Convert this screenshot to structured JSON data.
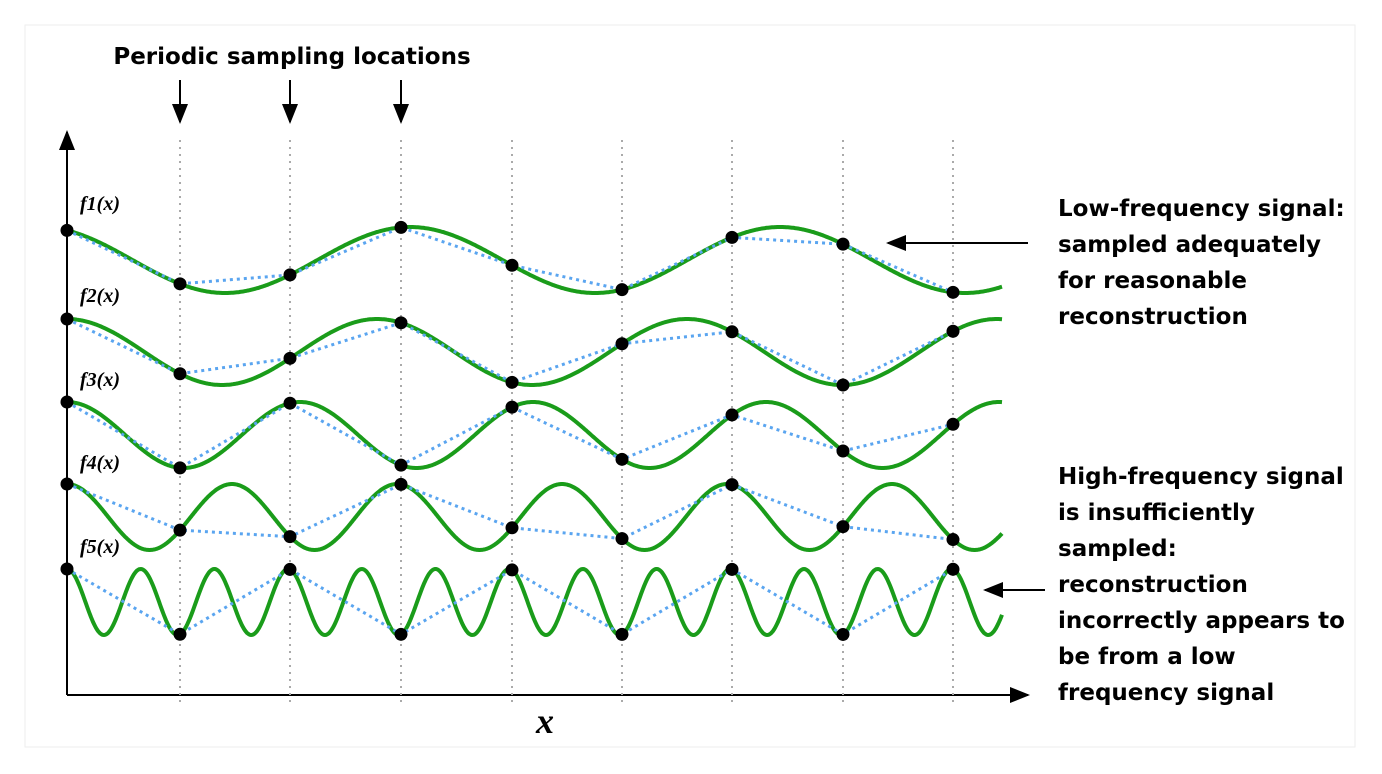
{
  "title": "Periodic sampling locations",
  "signals": [
    {
      "label": "f1(x)"
    },
    {
      "label": "f2(x)"
    },
    {
      "label": "f3(x)"
    },
    {
      "label": "f4(x)"
    },
    {
      "label": "f5(x)"
    }
  ],
  "x_label": "x",
  "annotations": [
    {
      "lines": [
        "Low-frequency signal:",
        "sampled adequately",
        "for reasonable",
        "reconstruction"
      ]
    },
    {
      "lines": [
        "High-frequency signal",
        "is insufficiently",
        "sampled:",
        "reconstruction",
        "incorrectly appears to",
        "be from a low",
        "frequency signal"
      ]
    }
  ]
}
